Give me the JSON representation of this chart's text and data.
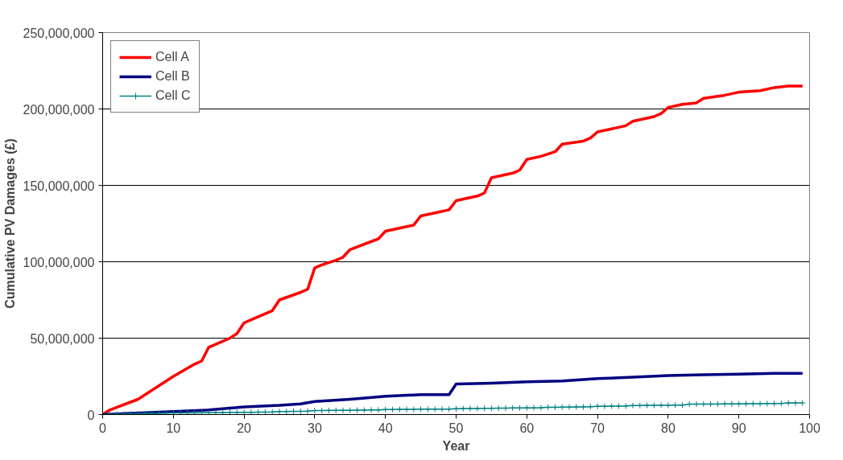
{
  "chart_data": {
    "type": "line",
    "xlabel": "Year",
    "ylabel": "Cumulative PV Damages (£)",
    "xlim": [
      0,
      100
    ],
    "xticks": [
      0,
      10,
      20,
      30,
      40,
      50,
      60,
      70,
      80,
      90,
      100
    ],
    "ylim": [
      0,
      250000000
    ],
    "yticks": [
      {
        "value": 0,
        "label": "0"
      },
      {
        "value": 50000000,
        "label": "50,000,000"
      },
      {
        "value": 100000000,
        "label": "100,000,000"
      },
      {
        "value": 150000000,
        "label": "150,000,000"
      },
      {
        "value": 200000000,
        "label": "200,000,000"
      },
      {
        "value": 250000000,
        "label": "250,000,000"
      }
    ],
    "grid": "y",
    "legend": "top left",
    "series": [
      {
        "name": "Cell A",
        "color": "#ff0000",
        "marker": "none",
        "x": [
          0,
          1,
          5,
          10,
          13,
          14,
          15,
          16,
          18,
          19,
          20,
          21,
          23,
          24,
          25,
          28,
          29,
          30,
          31,
          33,
          34,
          35,
          39,
          40,
          43,
          44,
          45,
          47,
          49,
          50,
          53,
          54,
          55,
          58,
          59,
          60,
          62,
          64,
          65,
          68,
          69,
          70,
          72,
          74,
          75,
          78,
          79,
          80,
          82,
          84,
          85,
          88,
          90,
          93,
          95,
          97,
          99
        ],
        "values": [
          0,
          3000000,
          10000000,
          25000000,
          33000000,
          35000000,
          44000000,
          46000000,
          50000000,
          53000000,
          60000000,
          62000000,
          66000000,
          68000000,
          75000000,
          80000000,
          82000000,
          96000000,
          98000000,
          101000000,
          103000000,
          108000000,
          115000000,
          120000000,
          123000000,
          124000000,
          130000000,
          132000000,
          134000000,
          140000000,
          143000000,
          145000000,
          155000000,
          158000000,
          160000000,
          167000000,
          169000000,
          172000000,
          177000000,
          179000000,
          181000000,
          185000000,
          187000000,
          189000000,
          192000000,
          195000000,
          197000000,
          201000000,
          203000000,
          204000000,
          207000000,
          209000000,
          211000000,
          212000000,
          214000000,
          215000000,
          215000000
        ]
      },
      {
        "name": "Cell B",
        "color": "#000080",
        "marker": "none",
        "x": [
          0,
          10,
          15,
          20,
          25,
          28,
          30,
          35,
          40,
          45,
          49,
          50,
          55,
          60,
          65,
          70,
          75,
          80,
          85,
          90,
          95,
          99
        ],
        "values": [
          0,
          2000000,
          3000000,
          5000000,
          6000000,
          7000000,
          8500000,
          10000000,
          12000000,
          13000000,
          13000000,
          20000000,
          20500000,
          21500000,
          22000000,
          23500000,
          24500000,
          25500000,
          26000000,
          26500000,
          27000000,
          27000000
        ]
      },
      {
        "name": "Cell C",
        "color": "#008080",
        "marker": "cross",
        "x": [
          0,
          1,
          2,
          3,
          4,
          5,
          6,
          7,
          8,
          9,
          10,
          11,
          12,
          13,
          14,
          15,
          16,
          17,
          18,
          19,
          20,
          21,
          22,
          23,
          24,
          25,
          26,
          27,
          28,
          29,
          30,
          31,
          32,
          33,
          34,
          35,
          36,
          37,
          38,
          39,
          40,
          41,
          42,
          43,
          44,
          45,
          46,
          47,
          48,
          49,
          50,
          51,
          52,
          53,
          54,
          55,
          56,
          57,
          58,
          59,
          60,
          61,
          62,
          63,
          64,
          65,
          66,
          67,
          68,
          69,
          70,
          71,
          72,
          73,
          74,
          75,
          76,
          77,
          78,
          79,
          80,
          81,
          82,
          83,
          84,
          85,
          86,
          87,
          88,
          89,
          90,
          91,
          92,
          93,
          94,
          95,
          96,
          97,
          98,
          99
        ],
        "values": [
          0,
          100000,
          200000,
          300000,
          400000,
          500000,
          600000,
          700000,
          800000,
          900000,
          1000000,
          1000000,
          1100000,
          1100000,
          1200000,
          1200000,
          1300000,
          1300000,
          1400000,
          1400000,
          1500000,
          1500000,
          1600000,
          1600000,
          1700000,
          2000000,
          2000000,
          2100000,
          2100000,
          2200000,
          2600000,
          2600000,
          2700000,
          2700000,
          2800000,
          2800000,
          2900000,
          2900000,
          3000000,
          3000000,
          3300000,
          3300000,
          3400000,
          3400000,
          3400000,
          3500000,
          3500000,
          3500000,
          3600000,
          3600000,
          3800000,
          3900000,
          4000000,
          4000000,
          4100000,
          4100000,
          4200000,
          4200000,
          4300000,
          4300000,
          4400000,
          4400000,
          4500000,
          4800000,
          4800000,
          4900000,
          4900000,
          5000000,
          5000000,
          5100000,
          5400000,
          5400000,
          5500000,
          5500000,
          5600000,
          5900000,
          5900000,
          6000000,
          6000000,
          6100000,
          6100000,
          6200000,
          6200000,
          6800000,
          6800000,
          6900000,
          6900000,
          6900000,
          7000000,
          7000000,
          7000000,
          7100000,
          7100000,
          7100000,
          7200000,
          7200000,
          7300000,
          7600000,
          7600000,
          7600000
        ]
      }
    ]
  }
}
